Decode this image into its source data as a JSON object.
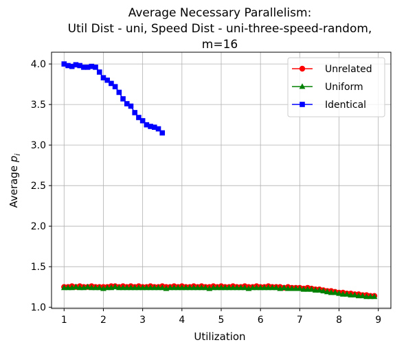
{
  "chart_data": {
    "type": "line",
    "title_lines": [
      "Average Necessary Parallelism:",
      "Util Dist - uni, Speed Dist - uni-three-speed-random,",
      "m=16"
    ],
    "xlabel": "Utilization",
    "ylabel_main": "Average ",
    "ylabel_symbol": "p",
    "ylabel_sub": "i",
    "xlim": [
      0.68,
      9.32
    ],
    "ylim": [
      0.985,
      4.145
    ],
    "xticks": [
      1,
      2,
      3,
      4,
      5,
      6,
      7,
      8,
      9
    ],
    "xtick_labels": [
      "1",
      "2",
      "3",
      "4",
      "5",
      "6",
      "7",
      "8",
      "9"
    ],
    "yticks": [
      1.0,
      1.5,
      2.0,
      2.5,
      3.0,
      3.5,
      4.0
    ],
    "ytick_labels": [
      "1.0",
      "1.5",
      "2.0",
      "2.5",
      "3.0",
      "3.5",
      "4.0"
    ],
    "grid": true,
    "legend_position": "top-right",
    "series": [
      {
        "name": "Unrelated",
        "color": "#ff0000",
        "marker": "circle",
        "x": [
          1.0,
          1.1,
          1.2,
          1.3,
          1.4,
          1.5,
          1.6,
          1.7,
          1.8,
          1.9,
          2.0,
          2.1,
          2.2,
          2.3,
          2.4,
          2.5,
          2.6,
          2.7,
          2.8,
          2.9,
          3.0,
          3.1,
          3.2,
          3.3,
          3.4,
          3.5,
          3.6,
          3.7,
          3.8,
          3.9,
          4.0,
          4.1,
          4.2,
          4.3,
          4.4,
          4.5,
          4.6,
          4.7,
          4.8,
          4.9,
          5.0,
          5.1,
          5.2,
          5.3,
          5.4,
          5.5,
          5.6,
          5.7,
          5.8,
          5.9,
          6.0,
          6.1,
          6.2,
          6.3,
          6.4,
          6.5,
          6.6,
          6.7,
          6.8,
          6.9,
          7.0,
          7.1,
          7.2,
          7.3,
          7.4,
          7.5,
          7.6,
          7.7,
          7.8,
          7.9,
          8.0,
          8.1,
          8.2,
          8.3,
          8.4,
          8.5,
          8.6,
          8.7,
          8.8,
          8.9
        ],
        "y": [
          1.25,
          1.25,
          1.26,
          1.25,
          1.26,
          1.25,
          1.25,
          1.26,
          1.25,
          1.25,
          1.25,
          1.25,
          1.26,
          1.26,
          1.25,
          1.26,
          1.25,
          1.26,
          1.25,
          1.26,
          1.25,
          1.25,
          1.26,
          1.25,
          1.25,
          1.26,
          1.25,
          1.25,
          1.26,
          1.25,
          1.26,
          1.25,
          1.25,
          1.26,
          1.25,
          1.26,
          1.25,
          1.25,
          1.26,
          1.25,
          1.26,
          1.25,
          1.25,
          1.26,
          1.25,
          1.25,
          1.26,
          1.25,
          1.25,
          1.26,
          1.25,
          1.25,
          1.26,
          1.25,
          1.25,
          1.25,
          1.24,
          1.25,
          1.24,
          1.24,
          1.24,
          1.23,
          1.24,
          1.23,
          1.22,
          1.22,
          1.21,
          1.2,
          1.2,
          1.19,
          1.18,
          1.18,
          1.17,
          1.17,
          1.16,
          1.16,
          1.15,
          1.15,
          1.14,
          1.14
        ]
      },
      {
        "name": "Uniform",
        "color": "#008000",
        "marker": "triangle",
        "x": [
          1.0,
          1.1,
          1.2,
          1.3,
          1.4,
          1.5,
          1.6,
          1.7,
          1.8,
          1.9,
          2.0,
          2.1,
          2.2,
          2.3,
          2.4,
          2.5,
          2.6,
          2.7,
          2.8,
          2.9,
          3.0,
          3.1,
          3.2,
          3.3,
          3.4,
          3.5,
          3.6,
          3.7,
          3.8,
          3.9,
          4.0,
          4.1,
          4.2,
          4.3,
          4.4,
          4.5,
          4.6,
          4.7,
          4.8,
          4.9,
          5.0,
          5.1,
          5.2,
          5.3,
          5.4,
          5.5,
          5.6,
          5.7,
          5.8,
          5.9,
          6.0,
          6.1,
          6.2,
          6.3,
          6.4,
          6.5,
          6.6,
          6.7,
          6.8,
          6.9,
          7.0,
          7.1,
          7.2,
          7.3,
          7.4,
          7.5,
          7.6,
          7.7,
          7.8,
          7.9,
          8.0,
          8.1,
          8.2,
          8.3,
          8.4,
          8.5,
          8.6,
          8.7,
          8.8,
          8.9
        ],
        "y": [
          1.24,
          1.24,
          1.24,
          1.25,
          1.24,
          1.24,
          1.25,
          1.24,
          1.24,
          1.24,
          1.23,
          1.24,
          1.24,
          1.25,
          1.24,
          1.24,
          1.24,
          1.24,
          1.24,
          1.24,
          1.24,
          1.24,
          1.24,
          1.24,
          1.24,
          1.24,
          1.23,
          1.24,
          1.24,
          1.24,
          1.24,
          1.24,
          1.24,
          1.24,
          1.24,
          1.24,
          1.24,
          1.23,
          1.24,
          1.24,
          1.24,
          1.24,
          1.24,
          1.24,
          1.24,
          1.24,
          1.24,
          1.23,
          1.24,
          1.24,
          1.24,
          1.24,
          1.24,
          1.24,
          1.24,
          1.23,
          1.24,
          1.23,
          1.23,
          1.23,
          1.23,
          1.22,
          1.22,
          1.22,
          1.21,
          1.21,
          1.2,
          1.19,
          1.18,
          1.18,
          1.17,
          1.16,
          1.16,
          1.15,
          1.15,
          1.14,
          1.14,
          1.13,
          1.13,
          1.13
        ]
      },
      {
        "name": "Identical",
        "color": "#0000ff",
        "marker": "square",
        "x": [
          1.0,
          1.1,
          1.2,
          1.3,
          1.4,
          1.5,
          1.6,
          1.7,
          1.8,
          1.9,
          2.0,
          2.1,
          2.2,
          2.3,
          2.4,
          2.5,
          2.6,
          2.7,
          2.8,
          2.9,
          3.0,
          3.1,
          3.2,
          3.3,
          3.4,
          3.5
        ],
        "y": [
          4.0,
          3.98,
          3.97,
          3.99,
          3.98,
          3.96,
          3.96,
          3.97,
          3.96,
          3.9,
          3.83,
          3.8,
          3.76,
          3.72,
          3.65,
          3.57,
          3.51,
          3.48,
          3.4,
          3.34,
          3.3,
          3.25,
          3.23,
          3.22,
          3.2,
          3.15
        ]
      }
    ]
  }
}
